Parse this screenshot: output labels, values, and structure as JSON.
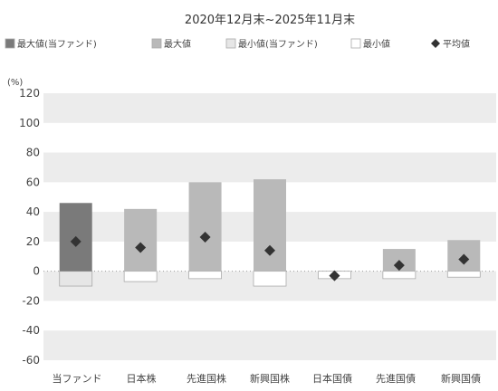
{
  "chart_data": {
    "type": "bar",
    "subtitle": "2020年12月末~2025年11月末",
    "unit_label": "(%)",
    "legend": {
      "placement": "top",
      "entries": [
        {
          "key": "fund_max",
          "label": "最大値(当ファンド)",
          "color": "#7a7a7a",
          "shape": "square"
        },
        {
          "key": "max",
          "label": "最大値",
          "color": "#b9b9b9",
          "shape": "square"
        },
        {
          "key": "fund_min",
          "label": "最小値(当ファンド)",
          "color": "#e6e6e6",
          "shape": "square"
        },
        {
          "key": "min",
          "label": "最小値",
          "color": "#ffffff",
          "shape": "square"
        },
        {
          "key": "avg",
          "label": "平均値",
          "color": "#333333",
          "shape": "diamond"
        }
      ]
    },
    "categories": [
      "当ファンド",
      "日本株",
      "先進国株",
      "新興国株",
      "日本国債",
      "先進国債",
      "新興国債"
    ],
    "series": [
      {
        "name": "最大値",
        "values": [
          46,
          42,
          60,
          62,
          0,
          15,
          21
        ]
      },
      {
        "name": "最小値",
        "values": [
          -10,
          -7,
          -5,
          -10,
          -5,
          -5,
          -4
        ]
      },
      {
        "name": "平均値",
        "values": [
          20,
          16,
          23,
          14,
          -3,
          4,
          8
        ]
      }
    ],
    "ylim": [
      -60,
      120
    ],
    "yticks": [
      120,
      100,
      80,
      60,
      40,
      20,
      0,
      -20,
      -40,
      -60
    ],
    "bands": "alternating",
    "colors": {
      "fund_max": "#7a7a7a",
      "max": "#b9b9b9",
      "fund_min": "#e6e6e6",
      "min": "#ffffff",
      "min_border": "#aaaaaa",
      "avg": "#333333",
      "band": "#ececec",
      "axis": "#999999"
    }
  }
}
